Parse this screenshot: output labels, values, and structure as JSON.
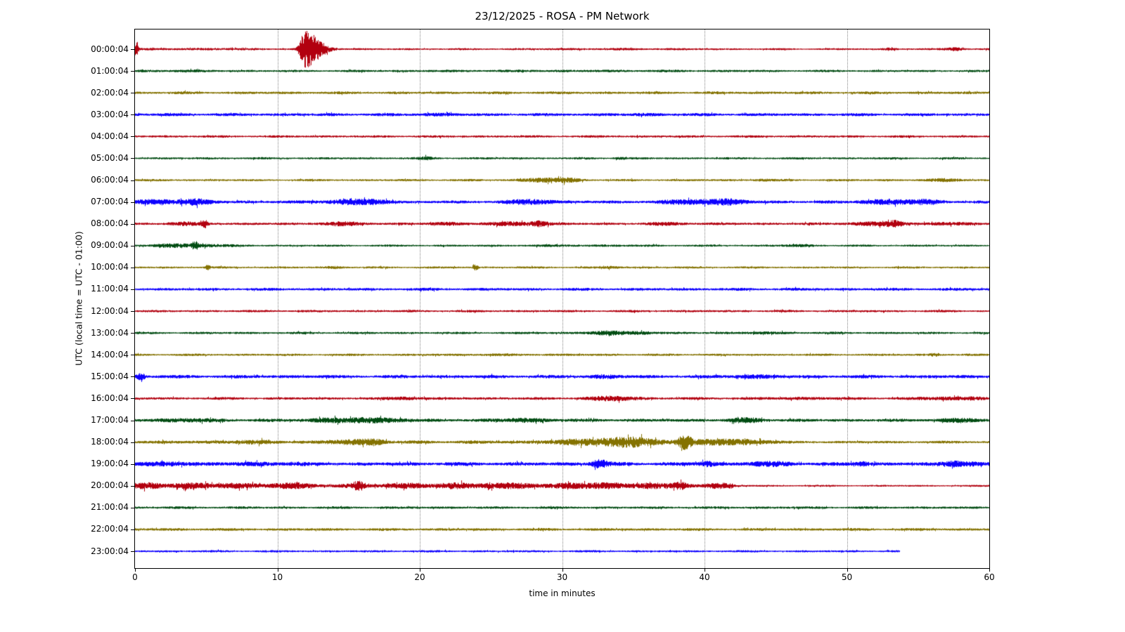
{
  "chart_data": {
    "type": "line",
    "subtype": "seismogram-helicorder-dayplot",
    "title": "23/12/2025 - ROSA - PM Network",
    "xlabel": "time in minutes",
    "ylabel": "UTC (local time = UTC - 01:00)",
    "xlim": [
      0,
      60
    ],
    "x_ticks": [
      0,
      10,
      20,
      30,
      40,
      50,
      60
    ],
    "grid": "vertical-dotted",
    "minutes_per_row": 60,
    "color_cycle": [
      "#B2000F",
      "#004C12",
      "#847200",
      "#0E01FF"
    ],
    "rows": [
      {
        "label": "00:00:04",
        "color": "#B2000F",
        "base": 1.1,
        "end": 60,
        "events": [
          {
            "t": 0.05,
            "w": 0.05,
            "amp": 13,
            "decay": 2
          },
          {
            "t": 11.9,
            "w": 0.25,
            "amp": 23,
            "decay": 3.5
          },
          {
            "t": 5,
            "w": 3,
            "amp": 0.5
          },
          {
            "t": 33.5,
            "w": 4,
            "amp": 0.35
          },
          {
            "t": 53,
            "w": 0.3,
            "amp": 1.2
          },
          {
            "t": 57.6,
            "w": 0.5,
            "amp": 1.7
          }
        ]
      },
      {
        "label": "01:00:04",
        "color": "#004C12",
        "base": 1.25,
        "end": 60,
        "events": [
          {
            "t": 3,
            "w": 2,
            "amp": 0.5
          },
          {
            "t": 30,
            "w": 8,
            "amp": 0.3
          }
        ]
      },
      {
        "label": "02:00:04",
        "color": "#847200",
        "base": 1.5,
        "end": 60,
        "events": []
      },
      {
        "label": "03:00:04",
        "color": "#0E01FF",
        "base": 1.7,
        "end": 60,
        "events": [
          {
            "t": 21,
            "w": 1,
            "amp": 0.7
          },
          {
            "t": 36,
            "w": 1,
            "amp": 0.5
          }
        ]
      },
      {
        "label": "04:00:04",
        "color": "#B2000F",
        "base": 1.35,
        "end": 60,
        "events": []
      },
      {
        "label": "05:00:04",
        "color": "#004C12",
        "base": 1.25,
        "end": 60,
        "events": [
          {
            "t": 20.5,
            "w": 0.4,
            "amp": 1.2
          },
          {
            "t": 34,
            "w": 0.3,
            "amp": 0.9
          }
        ]
      },
      {
        "label": "06:00:04",
        "color": "#847200",
        "base": 1.25,
        "end": 60,
        "events": [
          {
            "t": 28.8,
            "w": 1.2,
            "amp": 2.2
          },
          {
            "t": 30.5,
            "w": 0.6,
            "amp": 1.5
          },
          {
            "t": 44,
            "w": 0.5,
            "amp": 0.8
          },
          {
            "t": 57,
            "w": 1,
            "amp": 1.2
          }
        ]
      },
      {
        "label": "07:00:04",
        "color": "#0E01FF",
        "base": 1.7,
        "end": 60,
        "events": [
          {
            "t": 1.8,
            "w": 1.2,
            "amp": 2.2
          },
          {
            "t": 4.3,
            "w": 0.8,
            "amp": 2.6
          },
          {
            "t": 14.8,
            "w": 1.2,
            "amp": 2.2
          },
          {
            "t": 16.8,
            "w": 0.8,
            "amp": 2.0
          },
          {
            "t": 27.8,
            "w": 1.2,
            "amp": 2.4
          },
          {
            "t": 39.5,
            "w": 1.8,
            "amp": 2.4
          },
          {
            "t": 41.8,
            "w": 0.8,
            "amp": 2.0
          },
          {
            "t": 52.8,
            "w": 1.5,
            "amp": 2.2
          },
          {
            "t": 55.5,
            "w": 0.8,
            "amp": 1.8
          }
        ]
      },
      {
        "label": "08:00:04",
        "color": "#B2000F",
        "base": 1.45,
        "end": 60,
        "events": [
          {
            "t": 3.5,
            "w": 1,
            "amp": 1.2
          },
          {
            "t": 4.9,
            "w": 0.15,
            "amp": 4.5
          },
          {
            "t": 14.5,
            "w": 1.2,
            "amp": 1.6
          },
          {
            "t": 22,
            "w": 0.8,
            "amp": 1.2
          },
          {
            "t": 26.5,
            "w": 1.5,
            "amp": 1.6
          },
          {
            "t": 28.4,
            "w": 0.4,
            "amp": 2.6
          },
          {
            "t": 37.5,
            "w": 1,
            "amp": 1.2
          },
          {
            "t": 51.5,
            "w": 1.2,
            "amp": 1.6
          },
          {
            "t": 53.4,
            "w": 0.5,
            "amp": 3.4
          },
          {
            "t": 57,
            "w": 1,
            "amp": 1.2
          }
        ]
      },
      {
        "label": "09:00:04",
        "color": "#004C12",
        "base": 1.15,
        "end": 60,
        "events": [
          {
            "t": 2.3,
            "w": 1,
            "amp": 1.4
          },
          {
            "t": 4.2,
            "w": 0.15,
            "amp": 4.2
          },
          {
            "t": 4.8,
            "w": 1.2,
            "amp": 1.5
          },
          {
            "t": 31,
            "w": 3,
            "amp": 0.4
          },
          {
            "t": 46.5,
            "w": 0.8,
            "amp": 0.9
          }
        ]
      },
      {
        "label": "10:00:04",
        "color": "#847200",
        "base": 1.2,
        "end": 60,
        "events": [
          {
            "t": 5.1,
            "w": 0.12,
            "amp": 2.6
          },
          {
            "t": 14,
            "w": 0.5,
            "amp": 1.0
          },
          {
            "t": 23.9,
            "w": 0.12,
            "amp": 3.0
          },
          {
            "t": 33.5,
            "w": 0.4,
            "amp": 0.9
          }
        ]
      },
      {
        "label": "11:00:04",
        "color": "#0E01FF",
        "base": 1.6,
        "end": 60,
        "events": []
      },
      {
        "label": "12:00:04",
        "color": "#B2000F",
        "base": 1.3,
        "end": 60,
        "events": []
      },
      {
        "label": "13:00:04",
        "color": "#004C12",
        "base": 1.3,
        "end": 60,
        "events": [
          {
            "t": 33.3,
            "w": 1.2,
            "amp": 1.9
          },
          {
            "t": 35.7,
            "w": 0.6,
            "amp": 1.4
          },
          {
            "t": 44,
            "w": 2,
            "amp": 0.5
          }
        ]
      },
      {
        "label": "14:00:04",
        "color": "#847200",
        "base": 1.3,
        "end": 60,
        "events": [
          {
            "t": 25,
            "w": 3,
            "amp": 0.3
          },
          {
            "t": 56.2,
            "w": 0.3,
            "amp": 1.4
          }
        ]
      },
      {
        "label": "15:00:04",
        "color": "#0E01FF",
        "base": 1.85,
        "end": 60,
        "events": [
          {
            "t": 0.4,
            "w": 0.2,
            "amp": 3.8
          },
          {
            "t": 33,
            "w": 0.8,
            "amp": 1.4
          },
          {
            "t": 43.5,
            "w": 1,
            "amp": 1.3
          }
        ]
      },
      {
        "label": "16:00:04",
        "color": "#B2000F",
        "base": 1.5,
        "end": 60,
        "events": [
          {
            "t": 19,
            "w": 0.8,
            "amp": 1.2
          },
          {
            "t": 33.6,
            "w": 1.2,
            "amp": 2.2
          },
          {
            "t": 47,
            "w": 2,
            "amp": 0.6
          },
          {
            "t": 56.8,
            "w": 1.2,
            "amp": 1.3
          },
          {
            "t": 59,
            "w": 0.5,
            "amp": 1.2
          }
        ]
      },
      {
        "label": "17:00:04",
        "color": "#004C12",
        "base": 1.75,
        "end": 60,
        "events": [
          {
            "t": 3.5,
            "w": 1.5,
            "amp": 1.3
          },
          {
            "t": 13.8,
            "w": 1.2,
            "amp": 1.8
          },
          {
            "t": 16.2,
            "w": 1,
            "amp": 2.0
          },
          {
            "t": 18.2,
            "w": 0.8,
            "amp": 1.6
          },
          {
            "t": 27.3,
            "w": 1.5,
            "amp": 1.5
          },
          {
            "t": 43,
            "w": 0.8,
            "amp": 2.2
          },
          {
            "t": 57.8,
            "w": 1.2,
            "amp": 1.4
          }
        ]
      },
      {
        "label": "18:00:04",
        "color": "#847200",
        "base": 1.9,
        "end": 60,
        "segments": [
          [
            0,
            45,
            1.9
          ],
          [
            45,
            60,
            1.5
          ]
        ],
        "events": [
          {
            "t": 8,
            "w": 1.5,
            "amp": 1.0
          },
          {
            "t": 15.2,
            "w": 1.2,
            "amp": 2.0
          },
          {
            "t": 16.8,
            "w": 0.6,
            "amp": 2.2
          },
          {
            "t": 31.5,
            "w": 1.6,
            "amp": 2.6
          },
          {
            "t": 34.2,
            "w": 1.2,
            "amp": 4.2
          },
          {
            "t": 36,
            "w": 1,
            "amp": 2.2
          },
          {
            "t": 38.6,
            "w": 0.35,
            "amp": 7.5
          },
          {
            "t": 40.5,
            "w": 1.2,
            "amp": 2.6
          },
          {
            "t": 43.2,
            "w": 1,
            "amp": 2.2
          }
        ]
      },
      {
        "label": "19:00:04",
        "color": "#0E01FF",
        "base": 2.1,
        "end": 60,
        "events": [
          {
            "t": 2.5,
            "w": 1,
            "amp": 1.4
          },
          {
            "t": 9,
            "w": 1.5,
            "amp": 1.0
          },
          {
            "t": 32.6,
            "w": 0.4,
            "amp": 4.5
          },
          {
            "t": 40.2,
            "w": 0.4,
            "amp": 2.6
          },
          {
            "t": 44.5,
            "w": 1.2,
            "amp": 1.6
          },
          {
            "t": 51,
            "w": 0.4,
            "amp": 2.0
          },
          {
            "t": 57.6,
            "w": 0.5,
            "amp": 3.0
          },
          {
            "t": 58.8,
            "w": 0.4,
            "amp": 1.6
          }
        ]
      },
      {
        "label": "20:00:04",
        "color": "#B2000F",
        "base": 2.3,
        "end": 60,
        "segments": [
          [
            0,
            42,
            2.3
          ],
          [
            42,
            60,
            1.05
          ]
        ],
        "events": [
          {
            "t": 1,
            "w": 0.8,
            "amp": 2.0
          },
          {
            "t": 4,
            "w": 1.5,
            "amp": 1.6
          },
          {
            "t": 7.2,
            "w": 0.8,
            "amp": 1.8
          },
          {
            "t": 11,
            "w": 1.2,
            "amp": 1.8
          },
          {
            "t": 15.7,
            "w": 0.3,
            "amp": 4.5
          },
          {
            "t": 19,
            "w": 1,
            "amp": 1.8
          },
          {
            "t": 22.5,
            "w": 0.8,
            "amp": 1.8
          },
          {
            "t": 24.5,
            "w": 0.8,
            "amp": 1.6
          },
          {
            "t": 27,
            "w": 1.2,
            "amp": 1.6
          },
          {
            "t": 30.5,
            "w": 1,
            "amp": 1.6
          },
          {
            "t": 33,
            "w": 1.2,
            "amp": 2.0
          },
          {
            "t": 36,
            "w": 0.8,
            "amp": 2.0
          },
          {
            "t": 38.3,
            "w": 0.4,
            "amp": 3.2
          },
          {
            "t": 41,
            "w": 0.8,
            "amp": 1.6
          }
        ]
      },
      {
        "label": "21:00:04",
        "color": "#004C12",
        "base": 1.4,
        "end": 60,
        "events": []
      },
      {
        "label": "22:00:04",
        "color": "#847200",
        "base": 1.55,
        "end": 60,
        "events": []
      },
      {
        "label": "23:00:04",
        "color": "#0E01FF",
        "base": 1.25,
        "end": 53.7,
        "events": []
      }
    ]
  }
}
